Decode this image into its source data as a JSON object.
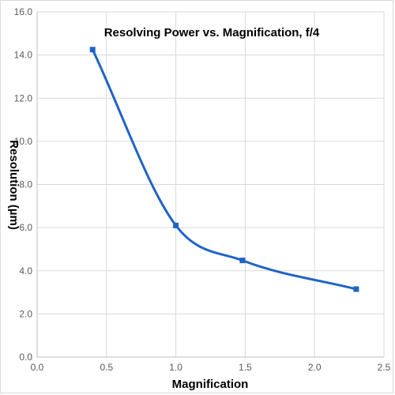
{
  "chart_data": {
    "type": "line",
    "title": "Resolving Power vs. Magnification, f/4",
    "xlabel": "Magnification",
    "ylabel": "Resolution (µm)",
    "xlim": [
      0.0,
      2.5
    ],
    "ylim": [
      0.0,
      16.0
    ],
    "x_ticks": [
      "0.0",
      "0.5",
      "1.0",
      "1.5",
      "2.0",
      "2.5"
    ],
    "y_ticks": [
      "0.0",
      "2.0",
      "4.0",
      "6.0",
      "8.0",
      "10.0",
      "12.0",
      "14.0",
      "16.0"
    ],
    "grid": true,
    "legend": false,
    "smooth": true,
    "marker": "square",
    "series": [
      {
        "color": "#1f63c7",
        "points": [
          {
            "x": 0.4,
            "y": 14.25
          },
          {
            "x": 1.0,
            "y": 6.1
          },
          {
            "x": 1.48,
            "y": 4.48
          },
          {
            "x": 2.3,
            "y": 3.15
          }
        ]
      }
    ]
  }
}
